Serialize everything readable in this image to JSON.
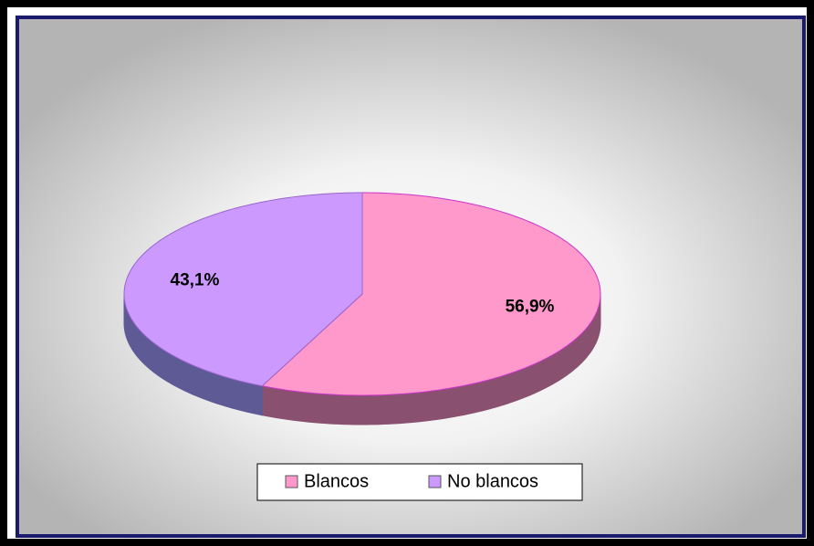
{
  "chart_data": {
    "type": "pie",
    "categories": [
      "Blancos",
      "No blancos"
    ],
    "values": [
      56.9,
      43.1
    ],
    "value_labels": [
      "56,9%",
      "43,1%"
    ],
    "colors": [
      "#ff99cc",
      "#cc99ff"
    ],
    "side_colors": [
      "#8a5070",
      "#5e5a96"
    ],
    "legend": "bottom"
  }
}
